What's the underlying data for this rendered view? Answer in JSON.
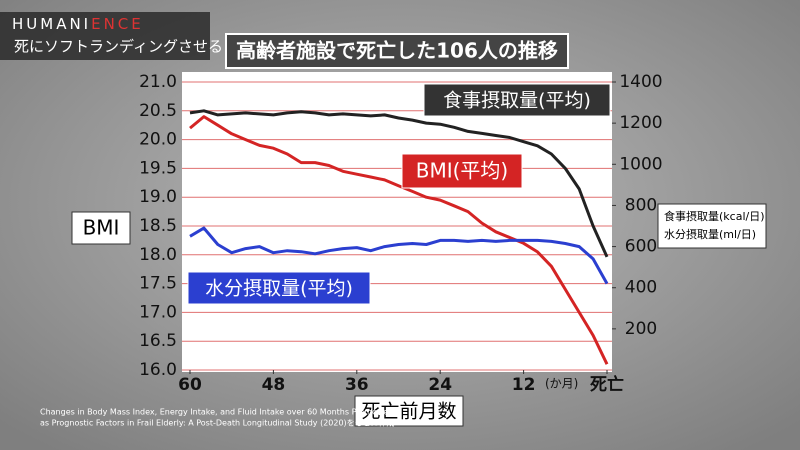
{
  "header": {
    "logo": [
      "HUMANI",
      "ENCE"
    ],
    "subtitle": "死にソフトランディングさせる"
  },
  "source": [
    "Changes in Body Mass Index, Energy Intake, and Fluid Intake over 60 Months Premortem",
    "as Prognostic Factors in Frail Elderly: A Post-Death Longitudinal Study (2020)をもとに作成"
  ],
  "chart_data": {
    "type": "line",
    "title": "高齢者施設で死亡した106人の推移",
    "x": [
      60,
      58,
      56,
      54,
      52,
      50,
      48,
      46,
      44,
      42,
      40,
      38,
      36,
      34,
      32,
      30,
      28,
      26,
      24,
      22,
      20,
      18,
      16,
      14,
      12,
      10,
      8,
      6,
      4,
      2,
      0
    ],
    "xlim": [
      60,
      0
    ],
    "xticks": [
      60,
      48,
      36,
      24,
      12,
      {
        "value": 0,
        "label": "死亡"
      }
    ],
    "x_unit": "(か月)",
    "xlabel": "死亡前月数",
    "ylabel": "BMI",
    "y2label": [
      "食事摂取量(kcal/日)",
      "水分摂取量(ml/日)"
    ],
    "ylim": [
      16,
      21
    ],
    "yticks": [
      {
        "value": 16,
        "label": "16.0"
      },
      16.5,
      {
        "value": 17,
        "label": "17.0"
      },
      17.5,
      {
        "value": 18,
        "label": "18.0"
      },
      18.5,
      {
        "value": 19,
        "label": "19.0"
      },
      19.5,
      {
        "value": 20,
        "label": "20.0"
      },
      20.5,
      {
        "value": 21,
        "label": "21.0"
      }
    ],
    "y2lim": [
      0,
      1400
    ],
    "y2ticks": [
      200,
      400,
      600,
      800,
      1000,
      1200,
      1400
    ],
    "grid": true,
    "series": [
      {
        "name": "食事摂取量(平均)",
        "color": "#222222",
        "axis": "y2",
        "values": [
          1250,
          1260,
          1240,
          1245,
          1250,
          1245,
          1240,
          1250,
          1255,
          1250,
          1240,
          1245,
          1240,
          1235,
          1240,
          1225,
          1215,
          1200,
          1195,
          1180,
          1160,
          1150,
          1140,
          1130,
          1110,
          1090,
          1050,
          980,
          880,
          700,
          550
        ]
      },
      {
        "name": "BMI(平均)",
        "color": "#d42424",
        "values": [
          20.2,
          20.4,
          20.25,
          20.1,
          20.0,
          19.9,
          19.85,
          19.75,
          19.6,
          19.6,
          19.55,
          19.45,
          19.4,
          19.35,
          19.3,
          19.2,
          19.1,
          19.0,
          18.95,
          18.85,
          18.75,
          18.55,
          18.4,
          18.3,
          18.2,
          18.05,
          17.8,
          17.4,
          17.0,
          16.6,
          16.1
        ]
      },
      {
        "name": "水分摂取量(平均)",
        "color": "#2b3fd0",
        "axis": "y2",
        "values": [
          650,
          690,
          610,
          570,
          590,
          600,
          570,
          580,
          575,
          565,
          580,
          590,
          595,
          580,
          600,
          610,
          615,
          610,
          630,
          630,
          625,
          630,
          625,
          630,
          630,
          630,
          625,
          615,
          600,
          540,
          420
        ]
      }
    ]
  }
}
